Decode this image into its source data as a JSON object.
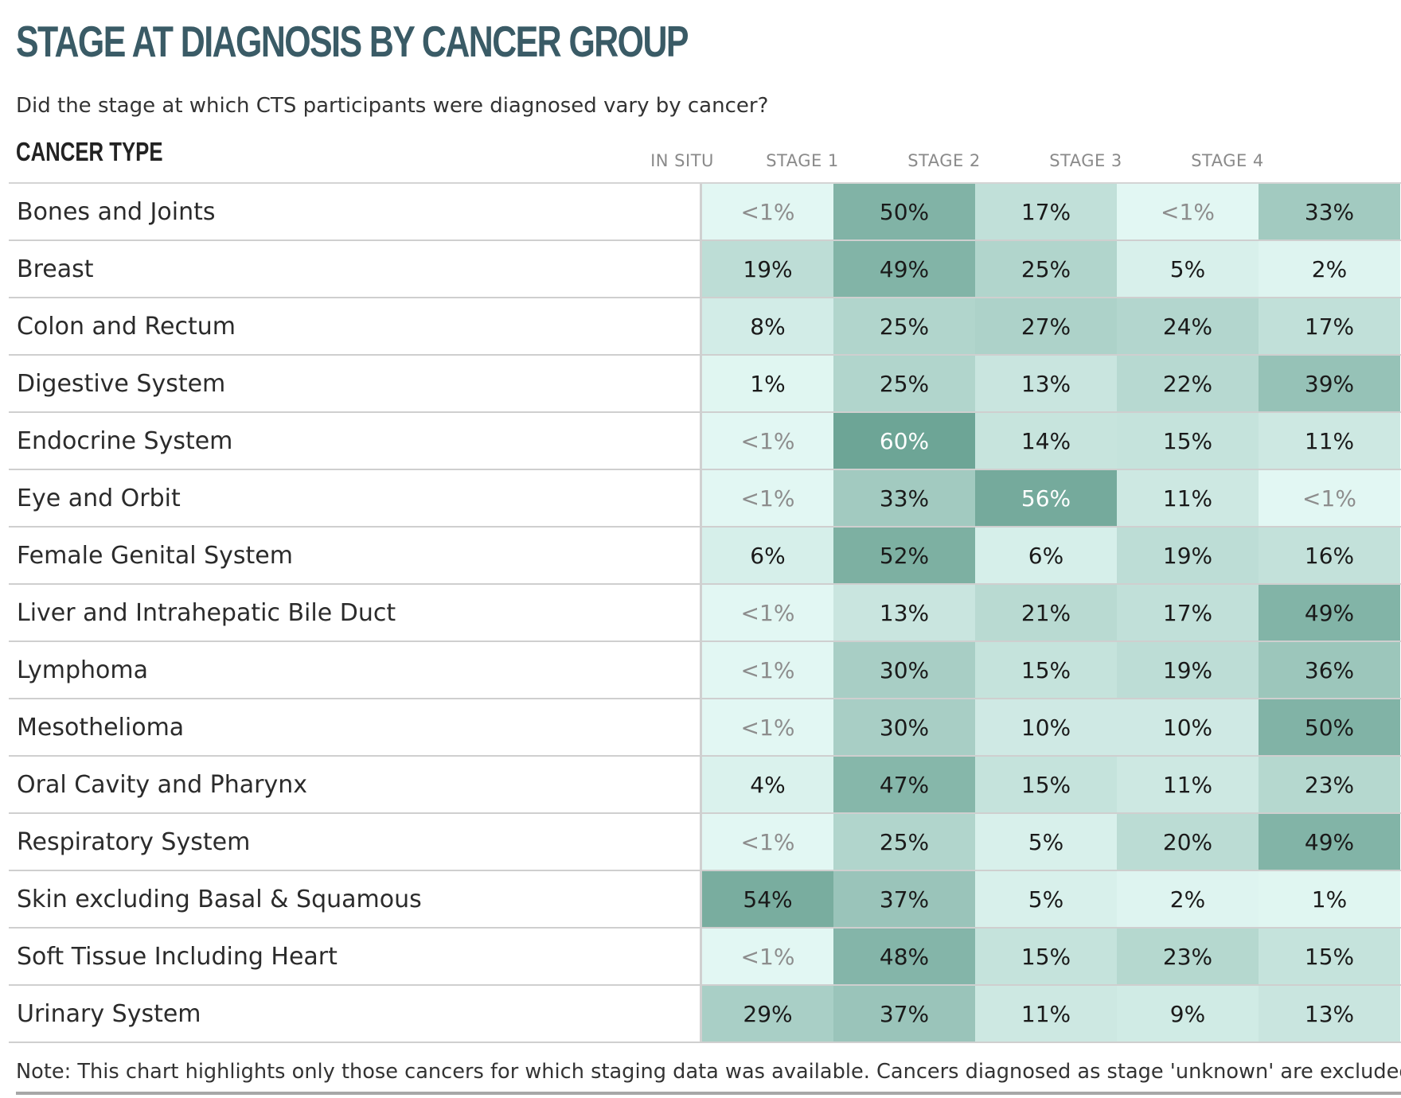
{
  "title": "STAGE AT DIAGNOSIS BY CANCER GROUP",
  "subtitle": "Did the stage at which CTS participants were diagnosed vary by cancer?",
  "row_header": "CANCER TYPE",
  "note": "Note: This chart highlights only those cancers for which staging data was available. Cancers diagnosed as stage 'unknown' are excluded.",
  "colors": {
    "title": "#3a5b66",
    "low": "#e2f7f3",
    "high": "#6da596"
  },
  "chart_data": {
    "type": "heatmap",
    "title": "STAGE AT DIAGNOSIS BY CANCER GROUP",
    "columns": [
      "IN SITU",
      "STAGE 1",
      "STAGE 2",
      "STAGE 3",
      "STAGE 4"
    ],
    "rows": [
      {
        "name": "Bones and Joints",
        "values": [
          "<1%",
          "50%",
          "17%",
          "<1%",
          "33%"
        ]
      },
      {
        "name": "Breast",
        "values": [
          "19%",
          "49%",
          "25%",
          "5%",
          "2%"
        ]
      },
      {
        "name": "Colon and Rectum",
        "values": [
          "8%",
          "25%",
          "27%",
          "24%",
          "17%"
        ]
      },
      {
        "name": "Digestive System",
        "values": [
          "1%",
          "25%",
          "13%",
          "22%",
          "39%"
        ]
      },
      {
        "name": "Endocrine System",
        "values": [
          "<1%",
          "60%",
          "14%",
          "15%",
          "11%"
        ]
      },
      {
        "name": "Eye and Orbit",
        "values": [
          "<1%",
          "33%",
          "56%",
          "11%",
          "<1%"
        ]
      },
      {
        "name": "Female Genital System",
        "values": [
          "6%",
          "52%",
          "6%",
          "19%",
          "16%"
        ]
      },
      {
        "name": "Liver and Intrahepatic Bile Duct",
        "values": [
          "<1%",
          "13%",
          "21%",
          "17%",
          "49%"
        ]
      },
      {
        "name": "Lymphoma",
        "values": [
          "<1%",
          "30%",
          "15%",
          "19%",
          "36%"
        ]
      },
      {
        "name": "Mesothelioma",
        "values": [
          "<1%",
          "30%",
          "10%",
          "10%",
          "50%"
        ]
      },
      {
        "name": "Oral Cavity and Pharynx",
        "values": [
          "4%",
          "47%",
          "15%",
          "11%",
          "23%"
        ]
      },
      {
        "name": "Respiratory System",
        "values": [
          "<1%",
          "25%",
          "5%",
          "20%",
          "49%"
        ]
      },
      {
        "name": "Skin excluding Basal & Squamous",
        "values": [
          "54%",
          "37%",
          "5%",
          "2%",
          "1%"
        ]
      },
      {
        "name": "Soft Tissue Including Heart",
        "values": [
          "<1%",
          "48%",
          "15%",
          "23%",
          "15%"
        ]
      },
      {
        "name": "Urinary System",
        "values": [
          "29%",
          "37%",
          "11%",
          "9%",
          "13%"
        ]
      }
    ]
  }
}
